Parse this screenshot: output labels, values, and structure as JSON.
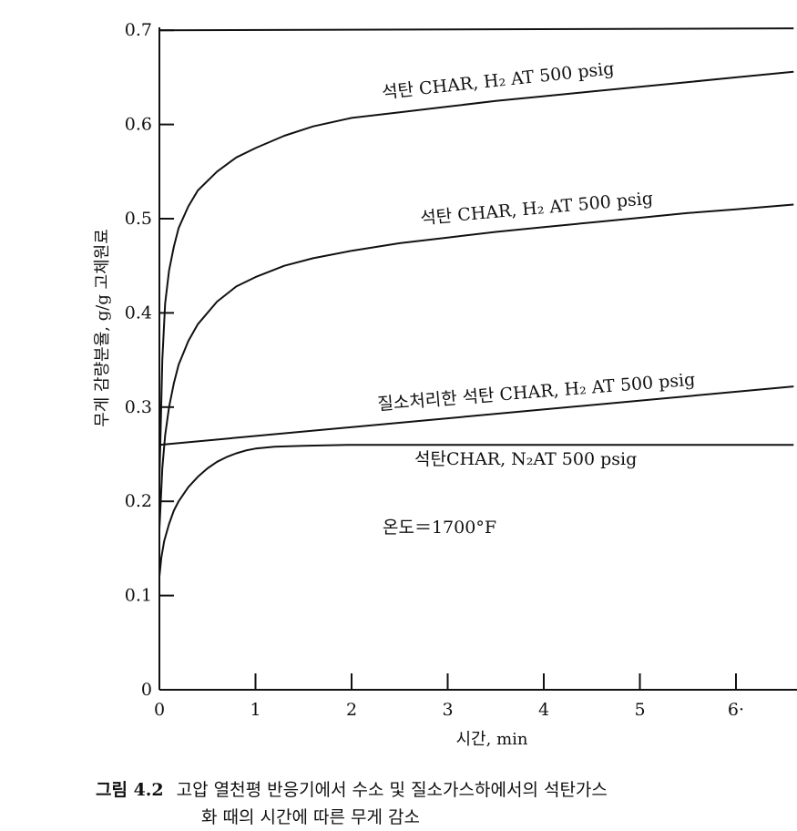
{
  "chart_data": {
    "type": "line",
    "title": "",
    "xlabel": "시간, min",
    "ylabel": "무게 감량분율, g/g 고체원료",
    "xlim": [
      0,
      6.6
    ],
    "ylim": [
      0,
      0.7
    ],
    "x_ticks": [
      "0",
      "1",
      "2",
      "3",
      "4",
      "5",
      "6·"
    ],
    "y_ticks": [
      "0",
      "0.1",
      "0.2",
      "0.3",
      "0.4",
      "0.5",
      "0.6",
      "0.7"
    ],
    "grid": false,
    "series": [
      {
        "name": "석탄 CHAR, H₂ AT 500 psig",
        "color": "#111111",
        "x": [
          0,
          0.03,
          0.06,
          0.1,
          0.15,
          0.2,
          0.3,
          0.4,
          0.6,
          0.8,
          1.0,
          1.3,
          1.6,
          2.0,
          2.5,
          3.0,
          3.5,
          4.0,
          4.5,
          5.0,
          5.5,
          6.0,
          6.6
        ],
        "y": [
          0.22,
          0.35,
          0.41,
          0.445,
          0.47,
          0.49,
          0.513,
          0.53,
          0.55,
          0.565,
          0.575,
          0.588,
          0.598,
          0.607,
          0.613,
          0.619,
          0.625,
          0.63,
          0.635,
          0.64,
          0.645,
          0.65,
          0.656
        ]
      },
      {
        "name": "석탄 CHAR, H₂ AT 500 psig",
        "color": "#111111",
        "x": [
          0,
          0.03,
          0.06,
          0.1,
          0.15,
          0.2,
          0.3,
          0.4,
          0.6,
          0.8,
          1.0,
          1.3,
          1.6,
          2.0,
          2.5,
          3.0,
          3.5,
          4.0,
          4.5,
          5.0,
          5.5,
          6.0,
          6.6
        ],
        "y": [
          0.17,
          0.235,
          0.27,
          0.3,
          0.325,
          0.345,
          0.37,
          0.388,
          0.412,
          0.428,
          0.438,
          0.45,
          0.458,
          0.466,
          0.474,
          0.48,
          0.486,
          0.491,
          0.496,
          0.501,
          0.506,
          0.51,
          0.515
        ]
      },
      {
        "name": "질소처리한 석탄 CHAR, H₂ AT 500 psig",
        "color": "#111111",
        "x": [
          0,
          6.6
        ],
        "y": [
          0.26,
          0.322
        ]
      },
      {
        "name": "석탄CHAR, N₂AT 500 psig",
        "color": "#111111",
        "x": [
          0,
          0.02,
          0.05,
          0.1,
          0.15,
          0.2,
          0.3,
          0.4,
          0.5,
          0.6,
          0.7,
          0.8,
          0.9,
          1.0,
          1.2,
          1.5,
          2.0,
          3.0,
          4.0,
          5.0,
          6.0,
          6.6
        ],
        "y": [
          0.12,
          0.14,
          0.158,
          0.176,
          0.19,
          0.2,
          0.215,
          0.226,
          0.235,
          0.242,
          0.247,
          0.251,
          0.254,
          0.256,
          0.258,
          0.259,
          0.26,
          0.26,
          0.26,
          0.26,
          0.26,
          0.26
        ]
      }
    ],
    "top_reference_line": {
      "x": [
        0,
        6.6
      ],
      "y": [
        0.7,
        0.702
      ]
    },
    "annotations": {
      "curve1": "석탄 CHAR, H₂ AT 500 psig",
      "curve2": "석탄 CHAR, H₂ AT 500 psig",
      "curve3": "질소처리한 석탄 CHAR, H₂ AT 500  psig",
      "curve4": "석탄CHAR, N₂AT 500 psig",
      "temperature": "온도＝1700°F"
    }
  },
  "caption": {
    "figure_number": "그림 4.2",
    "line1": "고압 열천평 반응기에서 수소 및 질소가스하에서의 석탄가스",
    "line2": "화 때의 시간에 따른 무게 감소"
  }
}
